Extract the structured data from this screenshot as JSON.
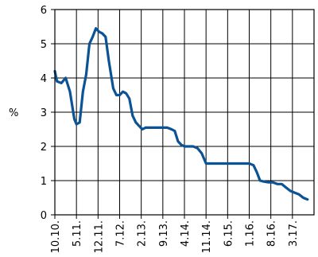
{
  "chart_data": {
    "type": "line",
    "title": "",
    "xlabel": "",
    "ylabel": "%",
    "ylim": [
      0,
      6
    ],
    "yticks": [
      "0",
      "1",
      "2",
      "3",
      "4",
      "5",
      "6"
    ],
    "grid": true,
    "xtick_labels": [
      "10.10.",
      "5.11.",
      "12.11.",
      "7.12.",
      "2.13.",
      "9.13.",
      "4.14.",
      "11.14.",
      "6.15.",
      "1.16.",
      "8.16.",
      "3.17."
    ],
    "line_color": "#0b5394",
    "series": [
      {
        "x": [
          0,
          0.1,
          0.3,
          0.5,
          0.7,
          0.9,
          1.0,
          1.15,
          1.3,
          1.45,
          1.6,
          1.75,
          1.9,
          2.05,
          2.2,
          2.35,
          2.5,
          2.7,
          2.85,
          3.0,
          3.15,
          3.3,
          3.45,
          3.6,
          3.75,
          3.9,
          4.05,
          4.2,
          4.4,
          4.6,
          4.8,
          5.0,
          5.2,
          5.4,
          5.55,
          5.7,
          5.85,
          6.0,
          6.2,
          6.4,
          6.6,
          6.8,
          7.0,
          7.2,
          7.6,
          8.0,
          8.4,
          8.8,
          9.0,
          9.2,
          9.35,
          9.5,
          9.7,
          9.9,
          10.1,
          10.3,
          10.5,
          10.7,
          10.9,
          11.1,
          11.3,
          11.5,
          11.7
        ],
        "y": [
          4.2,
          3.9,
          3.85,
          4.0,
          3.6,
          2.8,
          2.65,
          2.7,
          3.6,
          4.1,
          5.0,
          5.2,
          5.45,
          5.35,
          5.3,
          5.2,
          4.5,
          3.7,
          3.5,
          3.5,
          3.6,
          3.55,
          3.4,
          2.9,
          2.7,
          2.6,
          2.5,
          2.55,
          2.55,
          2.55,
          2.55,
          2.55,
          2.55,
          2.5,
          2.45,
          2.15,
          2.05,
          2.0,
          2.0,
          2.0,
          1.95,
          1.8,
          1.5,
          1.5,
          1.5,
          1.5,
          1.5,
          1.5,
          1.5,
          1.45,
          1.25,
          1.0,
          0.97,
          0.95,
          0.95,
          0.9,
          0.9,
          0.8,
          0.7,
          0.65,
          0.6,
          0.5,
          0.45
        ]
      }
    ]
  }
}
